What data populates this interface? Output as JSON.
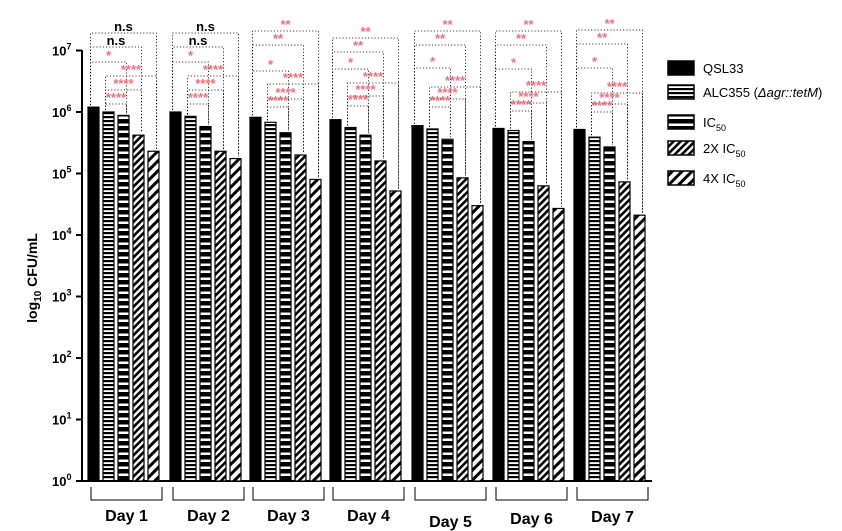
{
  "chart_data": {
    "type": "bar",
    "y_scale": "log10",
    "ylim": [
      1,
      10000000
    ],
    "ylabel": {
      "pre": "log",
      "sub": "10",
      "post": " CFU/mL"
    },
    "yticks": [
      {
        "base": "10",
        "exp": "0"
      },
      {
        "base": "10",
        "exp": "1"
      },
      {
        "base": "10",
        "exp": "2"
      },
      {
        "base": "10",
        "exp": "3"
      },
      {
        "base": "10",
        "exp": "4"
      },
      {
        "base": "10",
        "exp": "5"
      },
      {
        "base": "10",
        "exp": "6"
      },
      {
        "base": "10",
        "exp": "7"
      }
    ],
    "categories": [
      "Day 1",
      "Day 2",
      "Day 3",
      "Day 4",
      "Day 5",
      "Day 6",
      "Day 7"
    ],
    "series": [
      {
        "name": "QSL33",
        "pattern": "solid",
        "values": [
          1200000,
          1000000,
          820000,
          750000,
          600000,
          540000,
          520000
        ]
      },
      {
        "name": "ALC355 (Δagr::tetM)",
        "name_main": "ALC355 (",
        "name_italic": "Δagr::tetM",
        "name_end": ")",
        "pattern": "horizontal",
        "values": [
          1000000,
          850000,
          680000,
          560000,
          530000,
          500000,
          390000
        ]
      },
      {
        "name": "IC50",
        "name_main": "IC",
        "name_sub": "50",
        "pattern": "horizontal-wide",
        "values": [
          880000,
          580000,
          460000,
          420000,
          360000,
          330000,
          270000
        ]
      },
      {
        "name": "2X IC50",
        "name_main": "2X IC",
        "name_sub": "50",
        "pattern": "diagonal",
        "values": [
          420000,
          230000,
          200000,
          160000,
          85000,
          63000,
          73000
        ]
      },
      {
        "name": "4X IC50",
        "name_main": "4X IC",
        "name_sub": "50",
        "pattern": "diagonal-wide",
        "values": [
          230000,
          175000,
          80000,
          52000,
          30000,
          27000,
          21000
        ]
      }
    ],
    "significance": [
      [
        "n.s",
        "n.s",
        "*",
        "****",
        "****",
        "****"
      ],
      [
        "n.s",
        "n.s",
        "*",
        "****",
        "****",
        "****"
      ],
      [
        "**",
        "**",
        "*",
        "****",
        "****",
        "****"
      ],
      [
        "**",
        "**",
        "*",
        "****",
        "****",
        "****"
      ],
      [
        "**",
        "**",
        "*",
        "****",
        "****",
        "****"
      ],
      [
        "**",
        "**",
        "*",
        "****",
        "****",
        "****"
      ],
      [
        "**",
        "**",
        "*",
        "****",
        "****",
        "****"
      ]
    ],
    "colors": {
      "bar": "#000000",
      "significant": "#f26d7d",
      "not_significant": "#000000"
    },
    "legend": "right",
    "grid": false
  }
}
